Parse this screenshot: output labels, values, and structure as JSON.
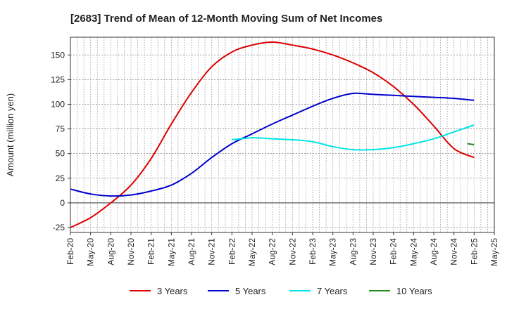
{
  "chart_data": {
    "type": "line",
    "title": "[2683]  Trend of Mean of 12-Month Moving Sum of Net Incomes",
    "xlabel": "",
    "ylabel": "Amount (million yen)",
    "ylim": [
      -30,
      168
    ],
    "yticks": [
      -25,
      0,
      25,
      50,
      75,
      100,
      125,
      150
    ],
    "x_tick_labels": [
      "Feb-20",
      "May-20",
      "Aug-20",
      "Nov-20",
      "Feb-21",
      "May-21",
      "Aug-21",
      "Nov-21",
      "Feb-22",
      "May-22",
      "Aug-22",
      "Nov-22",
      "Feb-23",
      "May-23",
      "Aug-23",
      "Nov-23",
      "Feb-24",
      "May-24",
      "Aug-24",
      "Nov-24",
      "Feb-25",
      "May-25"
    ],
    "grid": true,
    "legend_position": "bottom",
    "series": [
      {
        "name": "3 Years",
        "color": "#dd0000",
        "points": [
          [
            "Feb-20",
            -25
          ],
          [
            "May-20",
            -15
          ],
          [
            "Aug-20",
            0
          ],
          [
            "Nov-20",
            18
          ],
          [
            "Feb-21",
            45
          ],
          [
            "May-21",
            80
          ],
          [
            "Aug-21",
            112
          ],
          [
            "Nov-21",
            138
          ],
          [
            "Feb-22",
            153
          ],
          [
            "May-22",
            160
          ],
          [
            "Aug-22",
            163
          ],
          [
            "Nov-22",
            160
          ],
          [
            "Feb-23",
            156
          ],
          [
            "May-23",
            150
          ],
          [
            "Aug-23",
            142
          ],
          [
            "Nov-23",
            132
          ],
          [
            "Feb-24",
            118
          ],
          [
            "May-24",
            100
          ],
          [
            "Aug-24",
            78
          ],
          [
            "Nov-24",
            55
          ],
          [
            "Feb-25",
            46
          ]
        ]
      },
      {
        "name": "5 Years",
        "color": "#0000cc",
        "points": [
          [
            "Feb-20",
            14
          ],
          [
            "May-20",
            9
          ],
          [
            "Aug-20",
            7
          ],
          [
            "Nov-20",
            8
          ],
          [
            "Feb-21",
            12
          ],
          [
            "May-21",
            18
          ],
          [
            "Aug-21",
            30
          ],
          [
            "Nov-21",
            46
          ],
          [
            "Feb-22",
            60
          ],
          [
            "May-22",
            70
          ],
          [
            "Aug-22",
            80
          ],
          [
            "Nov-22",
            89
          ],
          [
            "Feb-23",
            98
          ],
          [
            "May-23",
            106
          ],
          [
            "Aug-23",
            111
          ],
          [
            "Nov-23",
            110
          ],
          [
            "Feb-24",
            109
          ],
          [
            "May-24",
            108
          ],
          [
            "Aug-24",
            107
          ],
          [
            "Nov-24",
            106
          ],
          [
            "Feb-25",
            104
          ]
        ]
      },
      {
        "name": "7 Years",
        "color": "#00e5e5",
        "points": [
          [
            "Feb-22",
            64
          ],
          [
            "May-22",
            66
          ],
          [
            "Aug-22",
            65
          ],
          [
            "Nov-22",
            64
          ],
          [
            "Feb-23",
            62
          ],
          [
            "May-23",
            57
          ],
          [
            "Aug-23",
            54
          ],
          [
            "Nov-23",
            54
          ],
          [
            "Feb-24",
            56
          ],
          [
            "May-24",
            60
          ],
          [
            "Aug-24",
            65
          ],
          [
            "Nov-24",
            72
          ],
          [
            "Feb-25",
            79
          ]
        ]
      },
      {
        "name": "10 Years",
        "color": "#228822",
        "points": [
          [
            "Jan-25",
            60
          ],
          [
            "Feb-25",
            59
          ]
        ]
      }
    ]
  }
}
